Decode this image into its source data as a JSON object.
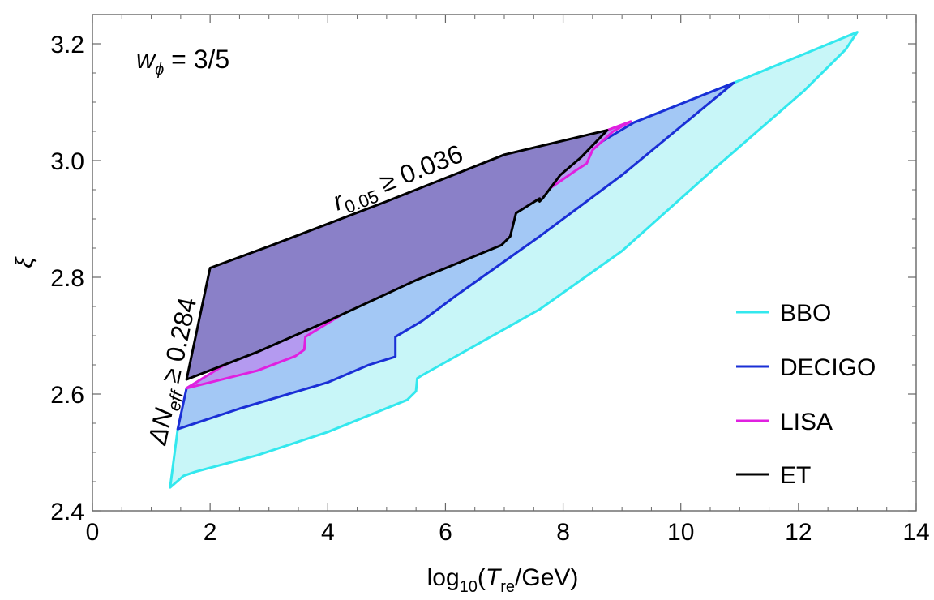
{
  "chart_data": {
    "type": "area",
    "xlabel": "log10(Tre/GeV)",
    "xlabel_parts": {
      "log": "log",
      "sub": "10",
      "paren_open": "(",
      "T": "T",
      "re": "re",
      "unit": "/GeV)"
    },
    "ylabel": "ξ",
    "xlim": [
      0,
      14
    ],
    "ylim": [
      2.4,
      3.25
    ],
    "x_ticks": [
      "0",
      "2",
      "4",
      "6",
      "8",
      "10",
      "12",
      "14"
    ],
    "x_tick_values": [
      0,
      2,
      4,
      6,
      8,
      10,
      12,
      14
    ],
    "y_ticks": [
      "2.4",
      "2.6",
      "2.8",
      "3.0",
      "3.2"
    ],
    "y_tick_values": [
      2.4,
      2.6,
      2.8,
      3.0,
      3.2
    ],
    "annotations": {
      "w_phi": {
        "w": "w",
        "sub": "ϕ",
        "rest": " = 3/5"
      },
      "r_bound": {
        "r": "r",
        "sub": "0.05",
        "rest": " ≥ 0.036"
      },
      "neff_bound": {
        "delta": "ΔN",
        "sub": "eff",
        "rest": " ≥ 0.284"
      }
    },
    "legend_position": "center-right",
    "series": [
      {
        "name": "BBO",
        "color": "#33e8ee",
        "fill": "#c8f6f8",
        "points": [
          [
            1.32,
            2.44
          ],
          [
            1.55,
            2.46
          ],
          [
            1.75,
            2.467
          ],
          [
            2.8,
            2.495
          ],
          [
            4.0,
            2.535
          ],
          [
            5.35,
            2.59
          ],
          [
            5.5,
            2.605
          ],
          [
            5.52,
            2.627
          ],
          [
            5.6,
            2.632
          ],
          [
            7.6,
            2.745
          ],
          [
            9.0,
            2.845
          ],
          [
            10.5,
            2.98
          ],
          [
            12.1,
            3.12
          ],
          [
            12.8,
            3.19
          ],
          [
            13.0,
            3.22
          ],
          [
            10.9,
            3.133
          ],
          [
            9.2,
            3.065
          ],
          [
            1.45,
            2.54
          ],
          [
            1.32,
            2.44
          ]
        ]
      },
      {
        "name": "DECIGO",
        "color": "#1a2fd6",
        "fill": "#a3c8f5",
        "points": [
          [
            1.45,
            2.54
          ],
          [
            2.5,
            2.575
          ],
          [
            4.0,
            2.62
          ],
          [
            4.7,
            2.65
          ],
          [
            5.15,
            2.664
          ],
          [
            5.15,
            2.698
          ],
          [
            5.6,
            2.725
          ],
          [
            6.2,
            2.77
          ],
          [
            7.6,
            2.87
          ],
          [
            9.0,
            2.975
          ],
          [
            10.9,
            3.133
          ],
          [
            9.2,
            3.065
          ],
          [
            1.6,
            2.61
          ],
          [
            1.45,
            2.54
          ]
        ]
      },
      {
        "name": "LISA",
        "color": "#e020e0",
        "fill": "#b49af0",
        "points": [
          [
            1.6,
            2.61
          ],
          [
            2.8,
            2.64
          ],
          [
            3.45,
            2.665
          ],
          [
            3.6,
            2.676
          ],
          [
            3.62,
            2.698
          ],
          [
            4.3,
            2.74
          ],
          [
            4.9,
            2.772
          ],
          [
            5.2,
            2.795
          ],
          [
            6.0,
            2.845
          ],
          [
            7.6,
            2.94
          ],
          [
            8.2,
            2.982
          ],
          [
            8.4,
            2.995
          ],
          [
            8.5,
            3.018
          ],
          [
            8.85,
            3.05
          ],
          [
            9.15,
            3.067
          ],
          [
            8.75,
            3.052
          ],
          [
            1.6,
            2.61
          ]
        ]
      },
      {
        "name": "ET",
        "color": "#000000",
        "fill": "#8a80c8",
        "points": [
          [
            1.6,
            2.625
          ],
          [
            2.0,
            2.816
          ],
          [
            3.0,
            2.853
          ],
          [
            5.0,
            2.93
          ],
          [
            7.0,
            3.01
          ],
          [
            8.75,
            3.052
          ],
          [
            8.3,
            3.005
          ],
          [
            7.95,
            2.975
          ],
          [
            7.65,
            2.935
          ],
          [
            7.6,
            2.93
          ],
          [
            7.6,
            2.935
          ],
          [
            7.2,
            2.91
          ],
          [
            7.1,
            2.87
          ],
          [
            6.95,
            2.855
          ],
          [
            5.5,
            2.795
          ],
          [
            4.0,
            2.725
          ],
          [
            2.8,
            2.672
          ],
          [
            1.6,
            2.625
          ]
        ]
      }
    ]
  }
}
